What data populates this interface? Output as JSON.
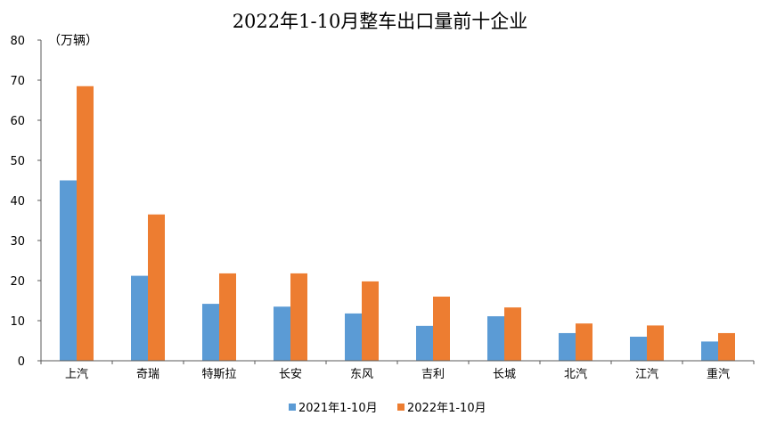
{
  "chart_data": {
    "type": "bar",
    "title": "2022年1-10月整车出口量前十企业",
    "unit_label": "（万辆）",
    "categories": [
      "上汽",
      "奇瑞",
      "特斯拉",
      "长安",
      "东风",
      "吉利",
      "长城",
      "北汽",
      "江汽",
      "重汽"
    ],
    "series": [
      {
        "name": "2021年1-10月",
        "color": "#5B9BD5",
        "values": [
          45,
          21.2,
          14.2,
          13.5,
          11.8,
          8.7,
          11.1,
          6.9,
          6.0,
          4.8
        ]
      },
      {
        "name": "2022年1-10月",
        "color": "#ED7D31",
        "values": [
          68.5,
          36.5,
          21.8,
          21.8,
          19.8,
          16.0,
          13.3,
          9.3,
          8.8,
          6.9
        ]
      }
    ],
    "yticks": [
      "0",
      "10",
      "20",
      "30",
      "40",
      "50",
      "60",
      "70",
      "80"
    ],
    "ylim": [
      0,
      80
    ],
    "grid": false,
    "legend_position": "bottom"
  }
}
